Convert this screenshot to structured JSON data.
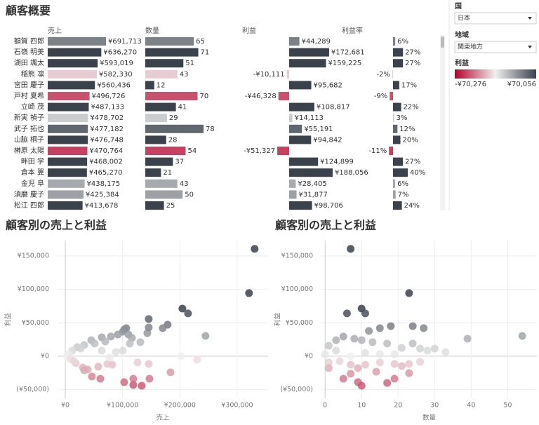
{
  "chart_data": [
    {
      "type": "bar",
      "title": "顧客概要",
      "categories": [
        "額賀 四郎",
        "石嶺 明美",
        "湖田 颯太",
        "稲熊 凛",
        "宮田 慶子",
        "戸村 夏希",
        "立崎 茂",
        "新実 禎子",
        "武子 拓也",
        "山脇 桐子",
        "榊原 太陽",
        "畔田 学",
        "倉本 翼",
        "金児 阜",
        "須磨 慶子",
        "松江 四郎"
      ],
      "series": [
        {
          "name": "売上",
          "values": [
            691713,
            636270,
            593019,
            582330,
            560436,
            496726,
            487133,
            478702,
            477182,
            476748,
            470764,
            468002,
            465270,
            438175,
            425384,
            413678
          ],
          "value_labels": [
            "¥691,713",
            "¥636,270",
            "¥593,019",
            "¥582,330",
            "¥560,436",
            "¥496,726",
            "¥487,133",
            "¥478,702",
            "¥477,182",
            "¥476,748",
            "¥470,764",
            "¥468,002",
            "¥465,270",
            "¥438,175",
            "¥425,384",
            "¥413,678"
          ]
        },
        {
          "name": "数量",
          "values": [
            65,
            71,
            51,
            43,
            12,
            70,
            41,
            29,
            78,
            28,
            54,
            37,
            21,
            43,
            50,
            25
          ]
        },
        {
          "name": "利益",
          "values": [
            44289,
            172681,
            159225,
            -10111,
            95682,
            -46328,
            108817,
            14113,
            55191,
            94842,
            -51327,
            124899,
            188056,
            28405,
            31877,
            98706
          ],
          "value_labels": [
            "¥44,289",
            "¥172,681",
            "¥159,225",
            "-¥10,111",
            "¥95,682",
            "-¥46,328",
            "¥108,817",
            "¥14,113",
            "¥55,191",
            "¥94,842",
            "-¥51,327",
            "¥124,899",
            "¥188,056",
            "¥28,405",
            "¥31,877",
            "¥98,706"
          ]
        },
        {
          "name": "利益率",
          "values": [
            6,
            27,
            27,
            -2,
            17,
            -9,
            22,
            3,
            12,
            20,
            -11,
            27,
            40,
            6,
            7,
            24
          ],
          "value_labels": [
            "6%",
            "27%",
            "27%",
            "-2%",
            "17%",
            "-9%",
            "22%",
            "3%",
            "12%",
            "20%",
            "-11%",
            "27%",
            "40%",
            "6%",
            "7%",
            "24%"
          ]
        }
      ]
    },
    {
      "type": "scatter",
      "title": "顧客別の売上と利益",
      "xlabel": "売上",
      "ylabel": "利益",
      "x": [
        330500,
        320700,
        204400,
        214200,
        178700,
        244800,
        202000,
        230100,
        183600,
        143200,
        145600,
        145600,
        170100,
        106500,
        102800,
        100400,
        91800,
        110200,
        116300,
        79600,
        63600,
        45300,
        33000,
        20800,
        12200,
        6100,
        2400,
        8600,
        18400,
        30600,
        39200,
        57500,
        73400,
        82000,
        126100,
        145600,
        146900,
        118700,
        102800,
        118700,
        133400,
        61200,
        46500,
        33000,
        14700,
        63600,
        88100,
        100400,
        112600,
        131000,
        69800,
        51400,
        26900,
        77100
      ],
      "values": [
        160500,
        94400,
        71300,
        64000,
        47200,
        30400,
        0,
        -5200,
        -24100,
        34600,
        55600,
        43000,
        42000,
        42000,
        39900,
        36700,
        32500,
        32500,
        27300,
        29400,
        28300,
        24100,
        16800,
        13600,
        8400,
        3100,
        0,
        -4200,
        -10500,
        -16800,
        -19900,
        -15700,
        -11500,
        -12600,
        -9400,
        -11500,
        -33600,
        -33600,
        -38800,
        -43000,
        -44100,
        -33600,
        -30400,
        -21000,
        -7300,
        8400,
        6300,
        8400,
        18900,
        21000,
        22000,
        18900,
        11500,
        -2100
      ],
      "xlim": [
        -13500,
        354000
      ],
      "ylim": [
        -63000,
        173000
      ],
      "xticks": [
        {
          "value": 0,
          "label": "¥0"
        },
        {
          "value": 100000,
          "label": "¥100,000"
        },
        {
          "value": 200000,
          "label": "¥200,000"
        },
        {
          "value": 300000,
          "label": "¥300,000"
        }
      ],
      "yticks": [
        {
          "value": -50000,
          "label": "(¥50,000)"
        },
        {
          "value": 0,
          "label": "¥0"
        },
        {
          "value": 50000,
          "label": "¥50,000"
        },
        {
          "value": 100000,
          "label": "¥100,000"
        },
        {
          "value": 150000,
          "label": "¥150,000"
        }
      ],
      "grid": true
    },
    {
      "type": "scatter",
      "title": "顧客別の売上と利益",
      "xlabel": "数量",
      "ylabel": "利益",
      "x": [
        7,
        23,
        10,
        11,
        6,
        18,
        24,
        27,
        15,
        12,
        39,
        54,
        33,
        30,
        28,
        26,
        24,
        21,
        17,
        13,
        10,
        8,
        5,
        3,
        1,
        0,
        3,
        7,
        11,
        15,
        19,
        1,
        4,
        7,
        9,
        11,
        15,
        19,
        23,
        26,
        1,
        7,
        9,
        10,
        17,
        19,
        21,
        23,
        5,
        14
      ],
      "values": [
        160500,
        94400,
        71300,
        64000,
        64000,
        45100,
        45100,
        42000,
        42000,
        37800,
        26200,
        30400,
        6300,
        11500,
        8400,
        11500,
        18900,
        12600,
        18900,
        21000,
        24100,
        26200,
        29400,
        24100,
        15700,
        3100,
        8400,
        0,
        5200,
        3100,
        3100,
        -9400,
        -7300,
        -12600,
        -17800,
        -12600,
        -9400,
        -11500,
        -11500,
        -8400,
        -17800,
        -26200,
        -38800,
        -44100,
        -39900,
        -33600,
        -14700,
        -25200,
        -33600,
        -23100
      ],
      "xlim": [
        -1,
        58
      ],
      "ylim": [
        -63000,
        173000
      ],
      "xticks": [
        0,
        10,
        20,
        30,
        40,
        50
      ],
      "yticks": [
        {
          "value": -50000,
          "label": "(¥50,000)"
        },
        {
          "value": 0,
          "label": "¥0"
        },
        {
          "value": 50000,
          "label": "¥50,000"
        },
        {
          "value": 100000,
          "label": "¥100,000"
        },
        {
          "value": 150000,
          "label": "¥150,000"
        }
      ],
      "grid": true
    }
  ],
  "filters": [
    {
      "label": "国",
      "value": "日本"
    },
    {
      "label": "地域",
      "value": "関東地方"
    }
  ],
  "color_legend": {
    "title": "利益",
    "min": {
      "value": -70276,
      "label": "-¥70,276"
    },
    "max": {
      "value": 70056,
      "label": "¥70,056"
    },
    "colors": [
      "#b5002c",
      "#efefef",
      "#3b424c"
    ]
  }
}
